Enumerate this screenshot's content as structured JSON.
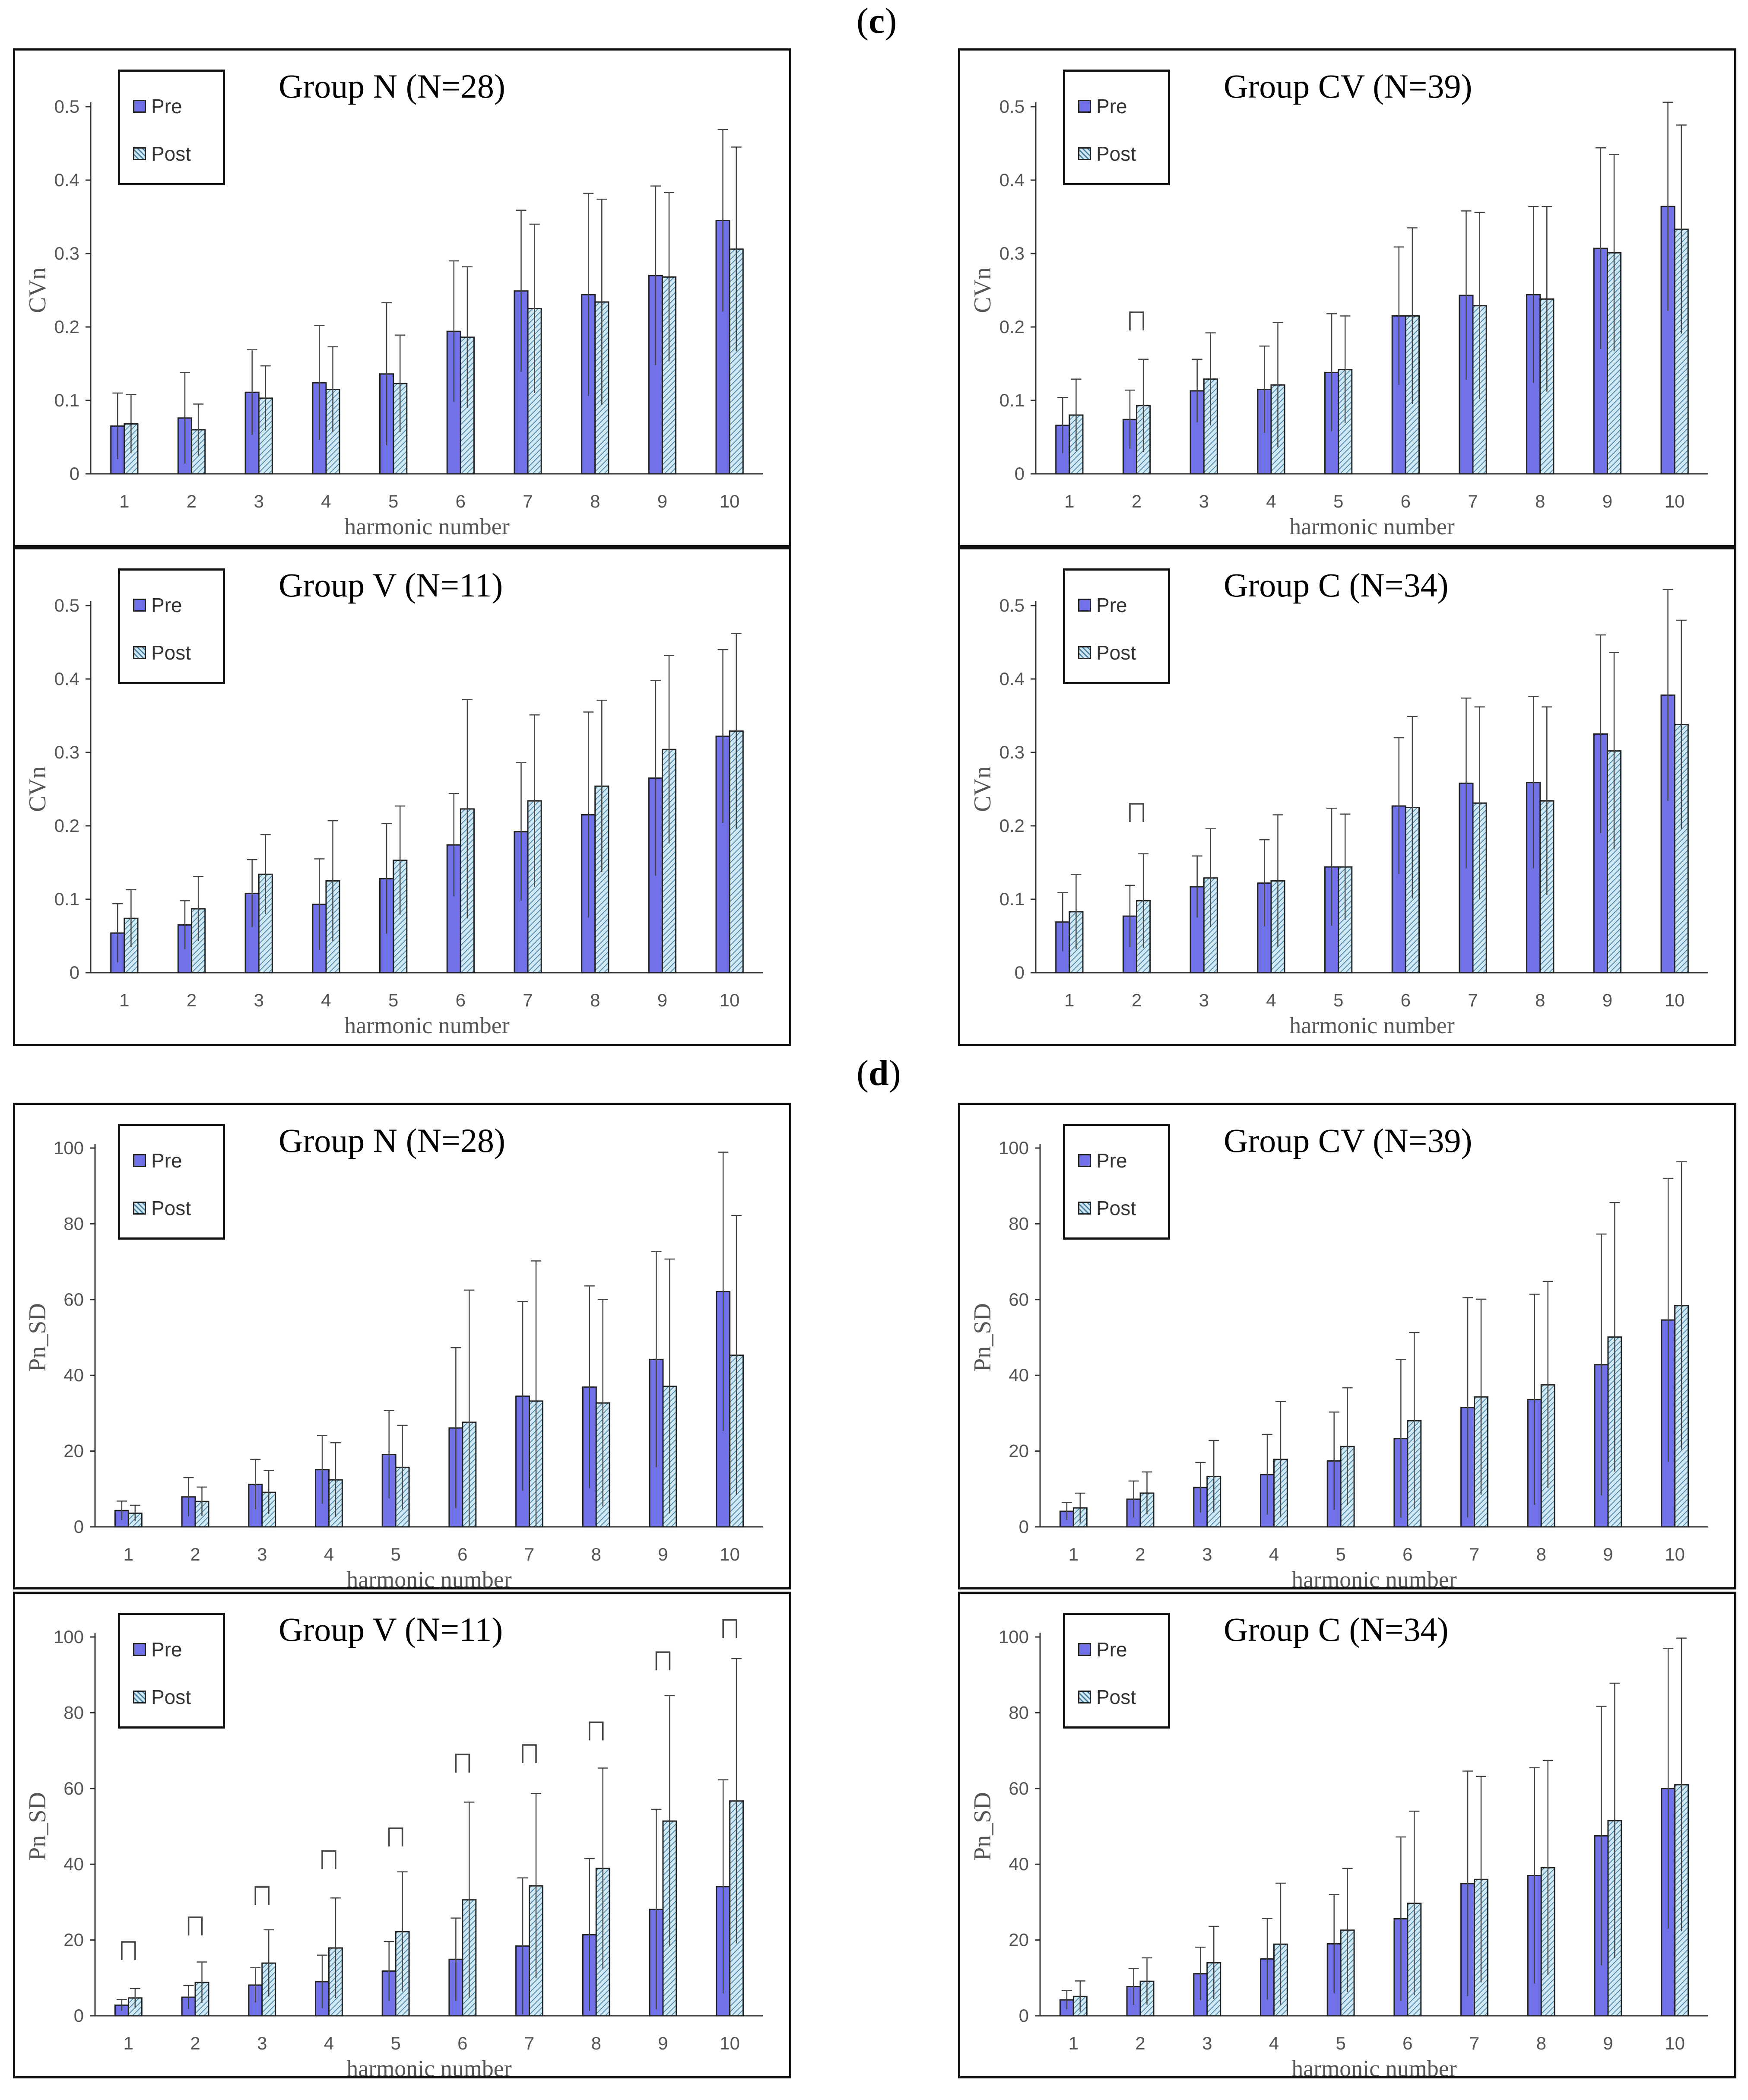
{
  "sections": {
    "c": "c",
    "d": "d"
  },
  "colors": {
    "pre": "#7272e8",
    "post_fill": "#cfe9f5",
    "post_hatch": "#4a7fa0"
  },
  "legend": {
    "pre": "Pre",
    "post": "Post"
  },
  "chart_data": [
    {
      "id": "c-n",
      "type": "bar",
      "title": "Group N (N=28)",
      "xlabel": "harmonic  number",
      "ylabel": "CVn",
      "categories": [
        "1",
        "2",
        "3",
        "4",
        "5",
        "6",
        "7",
        "8",
        "9",
        "10"
      ],
      "ylim": [
        0,
        0.5
      ],
      "yticks": [
        "0",
        "0.1",
        "0.2",
        "0.3",
        "0.4",
        "0.5"
      ],
      "series": [
        {
          "name": "Pre",
          "values": [
            0.065,
            0.076,
            0.111,
            0.124,
            0.136,
            0.194,
            0.249,
            0.244,
            0.27,
            0.345
          ],
          "err": [
            0.045,
            0.062,
            0.058,
            0.078,
            0.097,
            0.096,
            0.11,
            0.138,
            0.122,
            0.124
          ]
        },
        {
          "name": "Post",
          "values": [
            0.068,
            0.06,
            0.103,
            0.115,
            0.123,
            0.186,
            0.225,
            0.234,
            0.268,
            0.306
          ],
          "err": [
            0.04,
            0.035,
            0.044,
            0.058,
            0.066,
            0.096,
            0.115,
            0.14,
            0.115,
            0.139
          ]
        }
      ],
      "brackets": []
    },
    {
      "id": "c-cv",
      "type": "bar",
      "title": "Group CV (N=39)",
      "xlabel": "harmonic  number",
      "ylabel": "CVn",
      "categories": [
        "1",
        "2",
        "3",
        "4",
        "5",
        "6",
        "7",
        "8",
        "9",
        "10"
      ],
      "ylim": [
        0,
        0.5
      ],
      "yticks": [
        "0",
        "0.1",
        "0.2",
        "0.3",
        "0.4",
        "0.5"
      ],
      "series": [
        {
          "name": "Pre",
          "values": [
            0.066,
            0.074,
            0.113,
            0.115,
            0.138,
            0.215,
            0.243,
            0.244,
            0.307,
            0.364
          ],
          "err": [
            0.038,
            0.04,
            0.043,
            0.059,
            0.08,
            0.094,
            0.115,
            0.12,
            0.137,
            0.142
          ]
        },
        {
          "name": "Post",
          "values": [
            0.08,
            0.093,
            0.129,
            0.121,
            0.142,
            0.215,
            0.229,
            0.238,
            0.301,
            0.333
          ],
          "err": [
            0.049,
            0.063,
            0.063,
            0.085,
            0.073,
            0.12,
            0.127,
            0.126,
            0.134,
            0.142
          ]
        }
      ],
      "brackets": [
        {
          "cat": 1,
          "value": 0.22
        }
      ]
    },
    {
      "id": "c-v",
      "type": "bar",
      "title": "Group V (N=11)",
      "xlabel": "harmonic  number",
      "ylabel": "CVn",
      "categories": [
        "1",
        "2",
        "3",
        "4",
        "5",
        "6",
        "7",
        "8",
        "9",
        "10"
      ],
      "ylim": [
        0,
        0.5
      ],
      "yticks": [
        "0",
        "0.1",
        "0.2",
        "0.3",
        "0.4",
        "0.5"
      ],
      "series": [
        {
          "name": "Pre",
          "values": [
            0.054,
            0.065,
            0.108,
            0.093,
            0.128,
            0.174,
            0.192,
            0.215,
            0.265,
            0.322
          ],
          "err": [
            0.04,
            0.033,
            0.046,
            0.062,
            0.075,
            0.07,
            0.094,
            0.14,
            0.133,
            0.118
          ]
        },
        {
          "name": "Post",
          "values": [
            0.074,
            0.087,
            0.134,
            0.125,
            0.153,
            0.223,
            0.234,
            0.254,
            0.304,
            0.329
          ],
          "err": [
            0.039,
            0.044,
            0.054,
            0.082,
            0.074,
            0.149,
            0.117,
            0.117,
            0.128,
            0.133
          ]
        }
      ],
      "brackets": []
    },
    {
      "id": "c-c",
      "type": "bar",
      "title": "Group C (N=34)",
      "xlabel": "harmonic  number",
      "ylabel": "CVn",
      "categories": [
        "1",
        "2",
        "3",
        "4",
        "5",
        "6",
        "7",
        "8",
        "9",
        "10"
      ],
      "ylim": [
        0,
        0.5
      ],
      "yticks": [
        "0",
        "0.1",
        "0.2",
        "0.3",
        "0.4",
        "0.5"
      ],
      "series": [
        {
          "name": "Pre",
          "values": [
            0.069,
            0.077,
            0.117,
            0.122,
            0.144,
            0.227,
            0.258,
            0.259,
            0.325,
            0.378
          ],
          "err": [
            0.04,
            0.042,
            0.042,
            0.059,
            0.08,
            0.093,
            0.116,
            0.117,
            0.135,
            0.144
          ]
        },
        {
          "name": "Post",
          "values": [
            0.083,
            0.098,
            0.129,
            0.125,
            0.144,
            0.225,
            0.231,
            0.234,
            0.302,
            0.338
          ],
          "err": [
            0.051,
            0.064,
            0.067,
            0.09,
            0.072,
            0.124,
            0.131,
            0.128,
            0.134,
            0.142
          ]
        }
      ],
      "brackets": [
        {
          "cat": 1,
          "value": 0.23
        }
      ]
    },
    {
      "id": "d-n",
      "type": "bar",
      "title": "Group N (N=28)",
      "xlabel": "harmonic  number",
      "ylabel": "Pn_SD",
      "categories": [
        "1",
        "2",
        "3",
        "4",
        "5",
        "6",
        "7",
        "8",
        "9",
        "10"
      ],
      "ylim": [
        0,
        100
      ],
      "yticks": [
        "0",
        "20",
        "40",
        "60",
        "80",
        "100"
      ],
      "series": [
        {
          "name": "Pre",
          "values": [
            4.3,
            7.9,
            11.2,
            15.1,
            19.1,
            26.1,
            34.5,
            36.9,
            44.2,
            62.1
          ],
          "err": [
            2.5,
            5.1,
            6.6,
            9,
            11.6,
            21.2,
            25,
            26.7,
            28.5,
            36.8
          ]
        },
        {
          "name": "Post",
          "values": [
            3.6,
            6.7,
            9.1,
            12.4,
            15.7,
            27.6,
            33.2,
            32.7,
            37.1,
            45.3
          ],
          "err": [
            2.1,
            3.8,
            5.8,
            9.8,
            11.1,
            34.9,
            37,
            27.3,
            33.6,
            36.9
          ]
        }
      ],
      "brackets": []
    },
    {
      "id": "d-cv",
      "type": "bar",
      "title": "Group CV (N=39)",
      "xlabel": "harmonic  number",
      "ylabel": "Pn_SD",
      "categories": [
        "1",
        "2",
        "3",
        "4",
        "5",
        "6",
        "7",
        "8",
        "9",
        "10"
      ],
      "ylim": [
        0,
        100
      ],
      "yticks": [
        "0",
        "20",
        "40",
        "60",
        "80",
        "100"
      ],
      "series": [
        {
          "name": "Pre",
          "values": [
            4.1,
            7.3,
            10.4,
            13.8,
            17.4,
            23.3,
            31.5,
            33.6,
            42.8,
            54.6
          ],
          "err": [
            2.3,
            4.8,
            6.6,
            10.6,
            12.9,
            20.9,
            29,
            27.8,
            34.5,
            37.4
          ]
        },
        {
          "name": "Post",
          "values": [
            5,
            8.9,
            13.3,
            17.8,
            21.2,
            28,
            34.3,
            37.5,
            50.1,
            58.4
          ],
          "err": [
            3.9,
            5.6,
            9.5,
            15.3,
            15.5,
            23.3,
            25.8,
            27.3,
            35.5,
            38
          ]
        }
      ],
      "brackets": []
    },
    {
      "id": "d-v",
      "type": "bar",
      "title": "Group V (N=11)",
      "xlabel": "harmonic  number",
      "ylabel": "Pn_SD",
      "categories": [
        "1",
        "2",
        "3",
        "4",
        "5",
        "6",
        "7",
        "8",
        "9",
        "10"
      ],
      "ylim": [
        0,
        100
      ],
      "yticks": [
        "0",
        "20",
        "40",
        "60",
        "80",
        "100"
      ],
      "series": [
        {
          "name": "Pre",
          "values": [
            2.8,
            4.9,
            8.1,
            9,
            11.8,
            14.9,
            18.4,
            21.4,
            28.1,
            34.1
          ],
          "err": [
            1.5,
            3.1,
            4.6,
            7,
            7.8,
            10.9,
            18,
            20.1,
            26.4,
            28.2
          ]
        },
        {
          "name": "Post",
          "values": [
            4.7,
            8.8,
            13.9,
            17.9,
            22.2,
            30.6,
            34.3,
            38.9,
            51.4,
            56.7
          ],
          "err": [
            2.5,
            5.4,
            8.8,
            13.2,
            15.8,
            25.8,
            24.4,
            26.5,
            33.1,
            37.6
          ]
        }
      ],
      "brackets": [
        {
          "cat": 0,
          "value": 19.5
        },
        {
          "cat": 1,
          "value": 26
        },
        {
          "cat": 2,
          "value": 34
        },
        {
          "cat": 3,
          "value": 43.5
        },
        {
          "cat": 4,
          "value": 49.5
        },
        {
          "cat": 5,
          "value": 69
        },
        {
          "cat": 6,
          "value": 71.5
        },
        {
          "cat": 7,
          "value": 77.5
        },
        {
          "cat": 8,
          "value": 96
        },
        {
          "cat": 9,
          "value": 104.5
        }
      ]
    },
    {
      "id": "d-c",
      "type": "bar",
      "title": "Group C (N=34)",
      "xlabel": "harmonic  number",
      "ylabel": "Pn_SD",
      "categories": [
        "1",
        "2",
        "3",
        "4",
        "5",
        "6",
        "7",
        "8",
        "9",
        "10"
      ],
      "ylim": [
        0,
        100
      ],
      "yticks": [
        "0",
        "20",
        "40",
        "60",
        "80",
        "100"
      ],
      "series": [
        {
          "name": "Pre",
          "values": [
            4.2,
            7.7,
            11.1,
            15,
            19,
            25.6,
            34.9,
            37,
            47.5,
            60
          ],
          "err": [
            2.5,
            4.8,
            7,
            10.7,
            13,
            21.6,
            29.7,
            28.5,
            34.2,
            37
          ]
        },
        {
          "name": "Post",
          "values": [
            5.1,
            9.1,
            14,
            18.9,
            22.6,
            29.7,
            36,
            39.1,
            51.5,
            61
          ],
          "err": [
            4.1,
            6.2,
            9.6,
            16.1,
            16.3,
            24.3,
            27.2,
            28.3,
            36.3,
            38.7
          ]
        }
      ],
      "brackets": []
    }
  ]
}
